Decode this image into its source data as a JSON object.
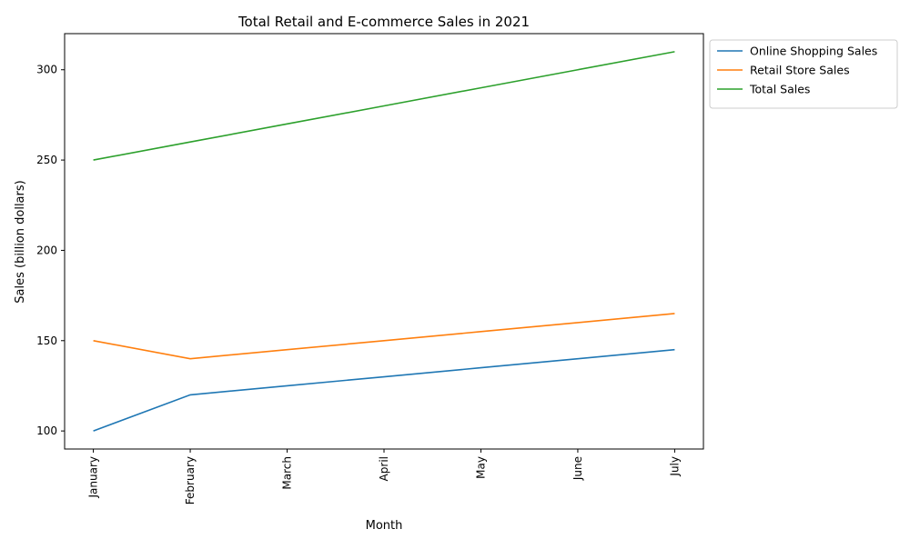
{
  "chart_data": {
    "type": "line",
    "title": "Total Retail and E-commerce Sales in 2021",
    "xlabel": "Month",
    "ylabel": "Sales (billion dollars)",
    "categories": [
      "January",
      "February",
      "March",
      "April",
      "May",
      "June",
      "July"
    ],
    "ylim": [
      90,
      320
    ],
    "yticks": [
      100,
      150,
      200,
      250,
      300
    ],
    "grid": false,
    "legend_position": "outside-top-right",
    "series": [
      {
        "name": "Online Shopping Sales",
        "color": "#1f77b4",
        "values": [
          100,
          120,
          125,
          130,
          135,
          140,
          145
        ]
      },
      {
        "name": "Retail Store Sales",
        "color": "#ff7f0e",
        "values": [
          150,
          140,
          145,
          150,
          155,
          160,
          165
        ]
      },
      {
        "name": "Total Sales",
        "color": "#2ca02c",
        "values": [
          250,
          260,
          270,
          280,
          290,
          300,
          310
        ]
      }
    ]
  }
}
